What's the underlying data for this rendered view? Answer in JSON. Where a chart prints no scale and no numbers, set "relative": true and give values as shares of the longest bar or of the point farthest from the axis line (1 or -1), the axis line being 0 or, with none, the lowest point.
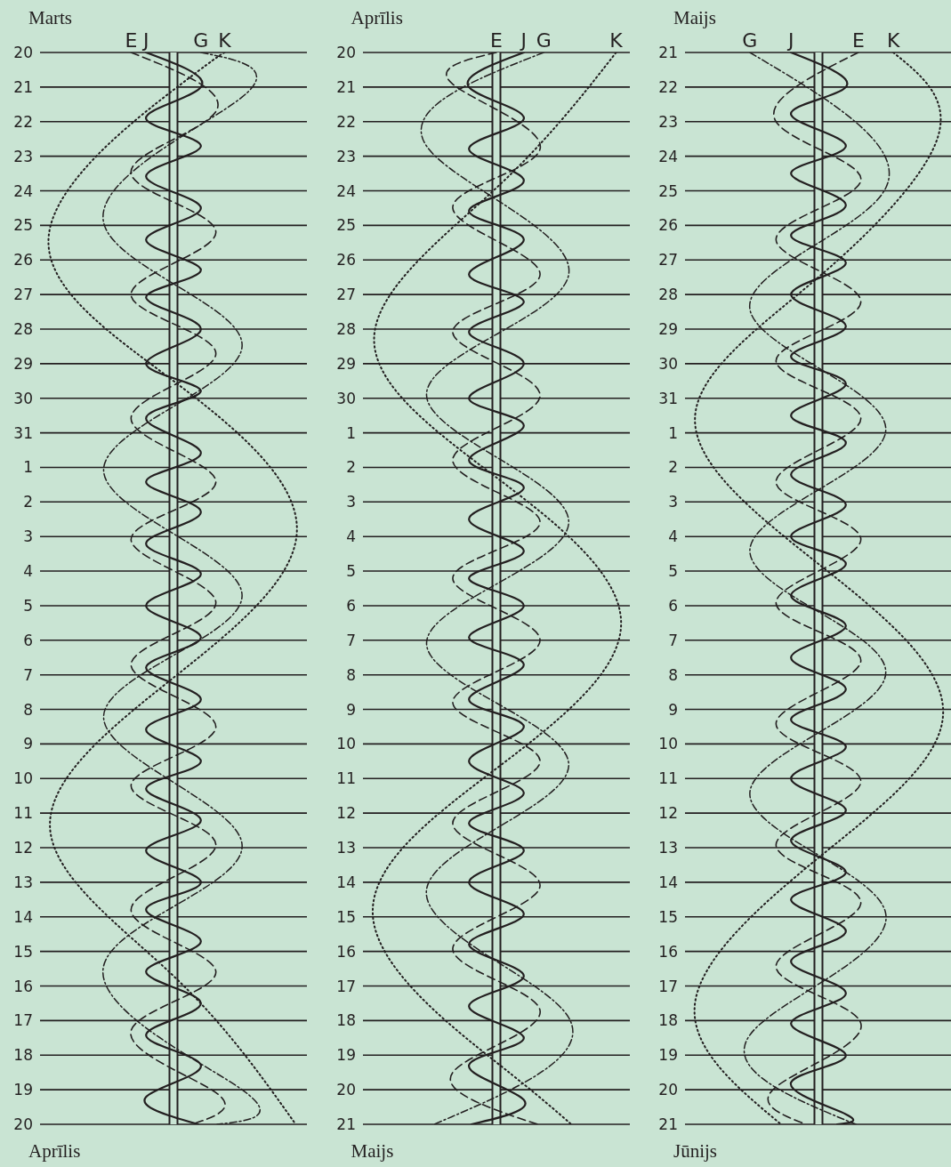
{
  "chart_data": [
    {
      "type": "line",
      "title": "Marts",
      "annotations": [
        "Aprīlis"
      ],
      "relative": true,
      "orientation": "horizontal",
      "grid": "y",
      "ylim": [
        "--04-20",
        "--03-20"
      ],
      "yticks": [
        {
          "value": "--03-20",
          "label": "20"
        },
        {
          "value": "--03-21",
          "label": "21"
        },
        {
          "value": "--03-22",
          "label": "22"
        },
        {
          "value": "--03-23",
          "label": "23"
        },
        {
          "value": "--03-24",
          "label": "24"
        },
        {
          "value": "--03-25",
          "label": "25"
        },
        {
          "value": "--03-26",
          "label": "26"
        },
        {
          "value": "--03-27",
          "label": "27"
        },
        {
          "value": "--03-28",
          "label": "28"
        },
        {
          "value": "--03-29",
          "label": "29"
        },
        {
          "value": "--03-30",
          "label": "30"
        },
        {
          "value": "--03-31",
          "label": "31"
        },
        {
          "value": "--04-01",
          "label": "1"
        },
        {
          "value": "--04-02",
          "label": "2"
        },
        {
          "value": "--04-03",
          "label": "3"
        },
        {
          "value": "--04-04",
          "label": "4"
        },
        {
          "value": "--04-05",
          "label": "5"
        },
        {
          "value": "--04-06",
          "label": "6"
        },
        {
          "value": "--04-07",
          "label": "7"
        },
        {
          "value": "--04-08",
          "label": "8"
        },
        {
          "value": "--04-09",
          "label": "9"
        },
        {
          "value": "--04-10",
          "label": "10"
        },
        {
          "value": "--04-11",
          "label": "11"
        },
        {
          "value": "--04-12",
          "label": "12"
        },
        {
          "value": "--04-13",
          "label": "13"
        },
        {
          "value": "--04-14",
          "label": "14"
        },
        {
          "value": "--04-15",
          "label": "15"
        },
        {
          "value": "--04-16",
          "label": "16"
        },
        {
          "value": "--04-17",
          "label": "17"
        },
        {
          "value": "--04-18",
          "label": "18"
        },
        {
          "value": "--04-19",
          "label": "19"
        },
        {
          "value": "--04-20",
          "label": "20"
        }
      ],
      "series": [
        {
          "name": "E",
          "color": "#231f20",
          "line_style": "dashed",
          "x": [
            "--03-20",
            "--03-21T17:00",
            "--03-23T12:00",
            "--03-25T05:00",
            "--03-27",
            "--03-28T17:00",
            "--03-30T14:00",
            "--04-01T10:00",
            "--04-03T02:00",
            "--04-04T22:00",
            "--04-06T17:00",
            "--04-08T12:00",
            "--04-10T05:00",
            "--04-11T22:00",
            "--04-13T19:00",
            "--04-15T14:00",
            "--04-17T07:00",
            "--04-19T02:00",
            "--04-20"
          ],
          "values": [
            -0.34,
            0.34,
            -0.34,
            0.34,
            -0.34,
            0.34,
            -0.34,
            0.34,
            -0.34,
            0.34,
            -0.34,
            0.34,
            -0.34,
            0.34,
            -0.34,
            0.34,
            -0.34,
            0.34,
            0.15
          ]
        },
        {
          "name": "J",
          "color": "#231f20",
          "line_style": "solid",
          "x": [
            "--03-20",
            "--03-21",
            "--03-21T22:00",
            "--03-22T17:00",
            "--03-23T14:00",
            "--03-24T12:00",
            "--03-25T10:00",
            "--03-26T07:00",
            "--03-27T02:00",
            "--03-28",
            "--03-29",
            "--03-29T19:00",
            "--03-30T14:00",
            "--03-31T14:00",
            "--04-01T10:00",
            "--04-02T07:00",
            "--04-03T05:00",
            "--04-04T02:00",
            "--04-05",
            "--04-05T22:00",
            "--04-06T19:00",
            "--04-07T17:00",
            "--04-08T14:00",
            "--04-09T12:00",
            "--04-10T07:00",
            "--04-11T05:00",
            "--04-12T02:00",
            "--04-13",
            "--04-13T19:00",
            "--04-14T17:00",
            "--04-15T14:00",
            "--04-16T12:00",
            "--04-17T10:00",
            "--04-18T07:00",
            "--04-19T05:00",
            "--04-20"
          ],
          "values": [
            -0.22,
            0.22,
            -0.22,
            0.22,
            -0.22,
            0.22,
            -0.22,
            0.22,
            -0.22,
            0.22,
            -0.22,
            0.22,
            -0.22,
            0.22,
            -0.22,
            0.22,
            -0.22,
            0.22,
            -0.22,
            0.22,
            -0.22,
            0.22,
            -0.22,
            0.22,
            -0.22,
            0.22,
            -0.22,
            0.22,
            -0.22,
            0.22,
            -0.22,
            0.22,
            -0.22,
            0.22,
            -0.22,
            0.2
          ]
        },
        {
          "name": "G",
          "color": "#231f20",
          "line_style": "dashdot",
          "x": [
            "--03-20",
            "--03-21T07:00",
            "--03-24T22:00",
            "--03-28T12:00",
            "--04-01T02:00",
            "--04-04T17:00",
            "--04-08T05:00",
            "--04-11T22:00",
            "--04-15T10:00",
            "--04-19",
            "--04-20"
          ],
          "values": [
            0.22,
            0.55,
            -0.56,
            0.55,
            -0.56,
            0.55,
            -0.56,
            0.55,
            -0.56,
            0.55,
            0.35
          ]
        },
        {
          "name": "K",
          "color": "#231f20",
          "line_style": "dotted",
          "x": [
            "--03-20",
            "--03-21T02:00",
            "--03-25T07:00",
            "--03-29T12:00",
            "--04-02T19:00",
            "--04-07T02:00",
            "--04-11T10:00",
            "--04-15T17:00",
            "--04-20"
          ],
          "values": [
            0.41,
            0,
            -1,
            0,
            0.99,
            0,
            -0.99,
            0,
            0.98
          ]
        }
      ]
    },
    {
      "type": "line",
      "title": "Aprīlis",
      "annotations": [
        "Maijs"
      ],
      "relative": true,
      "orientation": "horizontal",
      "grid": "y",
      "ylim": [
        "--05-21",
        "--04-20"
      ],
      "yticks": [
        {
          "value": "--04-20",
          "label": "20"
        },
        {
          "value": "--04-21",
          "label": "21"
        },
        {
          "value": "--04-22",
          "label": "22"
        },
        {
          "value": "--04-23",
          "label": "23"
        },
        {
          "value": "--04-24",
          "label": "24"
        },
        {
          "value": "--04-25",
          "label": "25"
        },
        {
          "value": "--04-26",
          "label": "26"
        },
        {
          "value": "--04-27",
          "label": "27"
        },
        {
          "value": "--04-28",
          "label": "28"
        },
        {
          "value": "--04-29",
          "label": "29"
        },
        {
          "value": "--04-30",
          "label": "30"
        },
        {
          "value": "--05-01",
          "label": "1"
        },
        {
          "value": "--05-02",
          "label": "2"
        },
        {
          "value": "--05-03",
          "label": "3"
        },
        {
          "value": "--05-04",
          "label": "4"
        },
        {
          "value": "--05-05",
          "label": "5"
        },
        {
          "value": "--05-06",
          "label": "6"
        },
        {
          "value": "--05-07",
          "label": "7"
        },
        {
          "value": "--05-08",
          "label": "8"
        },
        {
          "value": "--05-09",
          "label": "9"
        },
        {
          "value": "--05-10",
          "label": "10"
        },
        {
          "value": "--05-11",
          "label": "11"
        },
        {
          "value": "--05-12",
          "label": "12"
        },
        {
          "value": "--05-13",
          "label": "13"
        },
        {
          "value": "--05-14",
          "label": "14"
        },
        {
          "value": "--05-15",
          "label": "15"
        },
        {
          "value": "--05-16",
          "label": "16"
        },
        {
          "value": "--05-17",
          "label": "17"
        },
        {
          "value": "--05-18",
          "label": "18"
        },
        {
          "value": "--05-19",
          "label": "19"
        },
        {
          "value": "--05-20",
          "label": "20"
        },
        {
          "value": "--05-21",
          "label": "21"
        }
      ],
      "series": [
        {
          "name": "E",
          "color": "#231f20",
          "line_style": "dashed",
          "x": [
            "--04-20",
            "--04-20T22:00",
            "--04-22T19:00",
            "--04-24T12:00",
            "--04-26T10:00",
            "--04-28T02:00",
            "--04-29T22:00",
            "--05-01T19:00",
            "--05-03T14:00",
            "--05-05T05:00",
            "--05-07",
            "--05-08T19:00",
            "--05-10T12:00",
            "--05-12T07:00",
            "--05-14T02:00",
            "--05-15T22:00",
            "--05-17T17:00",
            "--05-19T12:00",
            "--05-21"
          ],
          "values": [
            0,
            -0.35,
            0.35,
            -0.35,
            0.35,
            -0.35,
            0.35,
            -0.35,
            0.35,
            -0.35,
            0.35,
            -0.35,
            0.35,
            -0.35,
            0.35,
            -0.35,
            0.35,
            -0.35,
            0.33
          ]
        },
        {
          "name": "J",
          "color": "#231f20",
          "line_style": "solid",
          "x": [
            "--04-20",
            "--04-21",
            "--04-21T22:00",
            "--04-22T19:00",
            "--04-23T17:00",
            "--04-24T14:00",
            "--04-25T10:00",
            "--04-26T10:00",
            "--04-27T05:00",
            "--04-28T02:00",
            "--04-29",
            "--04-30",
            "--04-30T19:00",
            "--05-01T19:00",
            "--05-02T14:00",
            "--05-03T12:00",
            "--05-04T10:00",
            "--05-05T05:00",
            "--05-06",
            "--05-06T22:00",
            "--05-07T17:00",
            "--05-08T17:00",
            "--05-09T12:00",
            "--05-10T12:00",
            "--05-11T10:00",
            "--05-12T07:00",
            "--05-13T02:00",
            "--05-14",
            "--05-14T22:00",
            "--05-15T19:00",
            "--05-16T17:00",
            "--05-17T14:00",
            "--05-18T12:00",
            "--05-19T07:00",
            "--05-20T07:00",
            "--05-21"
          ],
          "values": [
            0.22,
            -0.22,
            0.22,
            -0.22,
            0.22,
            -0.22,
            0.22,
            -0.22,
            0.22,
            -0.22,
            0.22,
            -0.22,
            0.22,
            -0.22,
            0.22,
            -0.22,
            0.22,
            -0.22,
            0.22,
            -0.22,
            0.22,
            -0.22,
            0.22,
            -0.22,
            0.22,
            -0.22,
            0.22,
            -0.22,
            0.22,
            -0.22,
            0.22,
            -0.22,
            0.22,
            -0.22,
            0.22,
            -0.2
          ]
        },
        {
          "name": "G",
          "color": "#231f20",
          "line_style": "dashdot",
          "x": [
            "--04-20",
            "--04-22T17:00",
            "--04-26T10:00",
            "--04-29T22:00",
            "--05-03T14:00",
            "--05-07T02:00",
            "--05-10T14:00",
            "--05-14T05:00",
            "--05-17T22:00",
            "--05-21"
          ],
          "values": [
            0.38,
            -0.56,
            0.58,
            -0.56,
            0.58,
            -0.56,
            0.58,
            -0.56,
            0.58,
            -0.5
          ]
        },
        {
          "name": "K",
          "color": "#231f20",
          "line_style": "dotted",
          "x": [
            "--04-20",
            "--04-23T22:00",
            "--04-28T05:00",
            "--05-02T07:00",
            "--05-06T12:00",
            "--05-10T17:00",
            "--05-15",
            "--05-19T05:00",
            "--05-21"
          ],
          "values": [
            0.96,
            0,
            -0.98,
            0,
            1,
            0,
            -0.99,
            0,
            0.6
          ]
        }
      ]
    },
    {
      "type": "line",
      "title": "Maijs",
      "annotations": [
        "Jūnijs"
      ],
      "relative": true,
      "orientation": "horizontal",
      "grid": "y",
      "ylim": [
        "--06-21",
        "--05-21"
      ],
      "yticks": [
        {
          "value": "--05-21",
          "label": "21"
        },
        {
          "value": "--05-22",
          "label": "22"
        },
        {
          "value": "--05-23",
          "label": "23"
        },
        {
          "value": "--05-24",
          "label": "24"
        },
        {
          "value": "--05-25",
          "label": "25"
        },
        {
          "value": "--05-26",
          "label": "26"
        },
        {
          "value": "--05-27",
          "label": "27"
        },
        {
          "value": "--05-28",
          "label": "28"
        },
        {
          "value": "--05-29",
          "label": "29"
        },
        {
          "value": "--05-30",
          "label": "30"
        },
        {
          "value": "--05-31",
          "label": "31"
        },
        {
          "value": "--06-01",
          "label": "1"
        },
        {
          "value": "--06-02",
          "label": "2"
        },
        {
          "value": "--06-03",
          "label": "3"
        },
        {
          "value": "--06-04",
          "label": "4"
        },
        {
          "value": "--06-05",
          "label": "5"
        },
        {
          "value": "--06-06",
          "label": "6"
        },
        {
          "value": "--06-07",
          "label": "7"
        },
        {
          "value": "--06-08",
          "label": "8"
        },
        {
          "value": "--06-09",
          "label": "9"
        },
        {
          "value": "--06-10",
          "label": "10"
        },
        {
          "value": "--06-11",
          "label": "11"
        },
        {
          "value": "--06-12",
          "label": "12"
        },
        {
          "value": "--06-13",
          "label": "13"
        },
        {
          "value": "--06-14",
          "label": "14"
        },
        {
          "value": "--06-15",
          "label": "15"
        },
        {
          "value": "--06-16",
          "label": "16"
        },
        {
          "value": "--06-17",
          "label": "17"
        },
        {
          "value": "--06-18",
          "label": "18"
        },
        {
          "value": "--06-19",
          "label": "19"
        },
        {
          "value": "--06-20",
          "label": "20"
        },
        {
          "value": "--06-21",
          "label": "21"
        }
      ],
      "series": [
        {
          "name": "E",
          "color": "#231f20",
          "line_style": "dashed",
          "x": [
            "--05-21",
            "--05-23",
            "--05-24T17:00",
            "--05-26T10:00",
            "--05-28T05:00",
            "--05-29T22:00",
            "--05-31T14:00",
            "--06-02T10:00",
            "--06-04T02:00",
            "--06-05T22:00",
            "--06-07T14:00",
            "--06-09T10:00",
            "--06-11T02:00",
            "--06-12T22:00",
            "--06-14T14:00",
            "--06-16T10:00",
            "--06-18T02:00",
            "--06-19T22:00",
            "--06-21"
          ],
          "values": [
            0.32,
            -0.34,
            0.34,
            -0.34,
            0.34,
            -0.34,
            0.34,
            -0.34,
            0.34,
            -0.34,
            0.34,
            -0.34,
            0.34,
            -0.34,
            0.34,
            -0.34,
            0.34,
            -0.34,
            -0.1
          ]
        },
        {
          "name": "J",
          "color": "#231f20",
          "line_style": "solid",
          "x": [
            "--05-21",
            "--05-22",
            "--05-22T19:00",
            "--05-23T17:00",
            "--05-24T12:00",
            "--05-25T10:00",
            "--05-26T07:00",
            "--05-27T02:00",
            "--05-28",
            "--05-28T22:00",
            "--05-29T19:00",
            "--05-30T14:00",
            "--05-31T12:00",
            "--06-01T07:00",
            "--06-02T05:00",
            "--06-03T02:00",
            "--06-04",
            "--06-04T19:00",
            "--06-05T17:00",
            "--06-06T14:00",
            "--06-07T12:00",
            "--06-08T10:00",
            "--06-09T07:00",
            "--06-10T02:00",
            "--06-11",
            "--06-11T22:00",
            "--06-12T19:00",
            "--06-13T17:00",
            "--06-14T12:00",
            "--06-15T10:00",
            "--06-16T07:00",
            "--06-17T05:00",
            "--06-18T02:00",
            "--06-19",
            "--06-19T19:00",
            "--06-20T17:00",
            "--06-21"
          ],
          "values": [
            -0.22,
            0.22,
            -0.22,
            0.22,
            -0.22,
            0.22,
            -0.22,
            0.22,
            -0.22,
            0.22,
            -0.22,
            0.22,
            -0.22,
            0.22,
            -0.22,
            0.22,
            -0.22,
            0.22,
            -0.22,
            0.22,
            -0.22,
            0.22,
            -0.22,
            0.22,
            -0.22,
            0.22,
            -0.22,
            0.22,
            -0.22,
            0.22,
            -0.22,
            0.22,
            -0.22,
            0.22,
            -0.22,
            0.22,
            0.15
          ]
        },
        {
          "name": "G",
          "color": "#231f20",
          "line_style": "dashdot",
          "x": [
            "--05-21",
            "--05-24T22:00",
            "--05-28T10:00",
            "--05-31T22:00",
            "--06-04T10:00",
            "--06-07T22:00",
            "--06-11T10:00",
            "--06-14T22:00",
            "--06-18T10:00",
            "--06-21"
          ],
          "values": [
            -0.55,
            0.54,
            -0.55,
            0.54,
            -0.55,
            0.54,
            -0.55,
            0.54,
            -0.55,
            0.3
          ]
        },
        {
          "name": "K",
          "color": "#231f20",
          "line_style": "dotted",
          "x": [
            "--05-21",
            "--05-23T10:00",
            "--05-27T12:00",
            "--05-31T14:00",
            "--06-04T19:00",
            "--06-09T02:00",
            "--06-13T07:00",
            "--06-17T12:00",
            "--06-21"
          ],
          "values": [
            0.6,
            0.96,
            0,
            -0.99,
            0,
            1,
            0,
            -0.99,
            -0.3
          ]
        }
      ]
    }
  ]
}
